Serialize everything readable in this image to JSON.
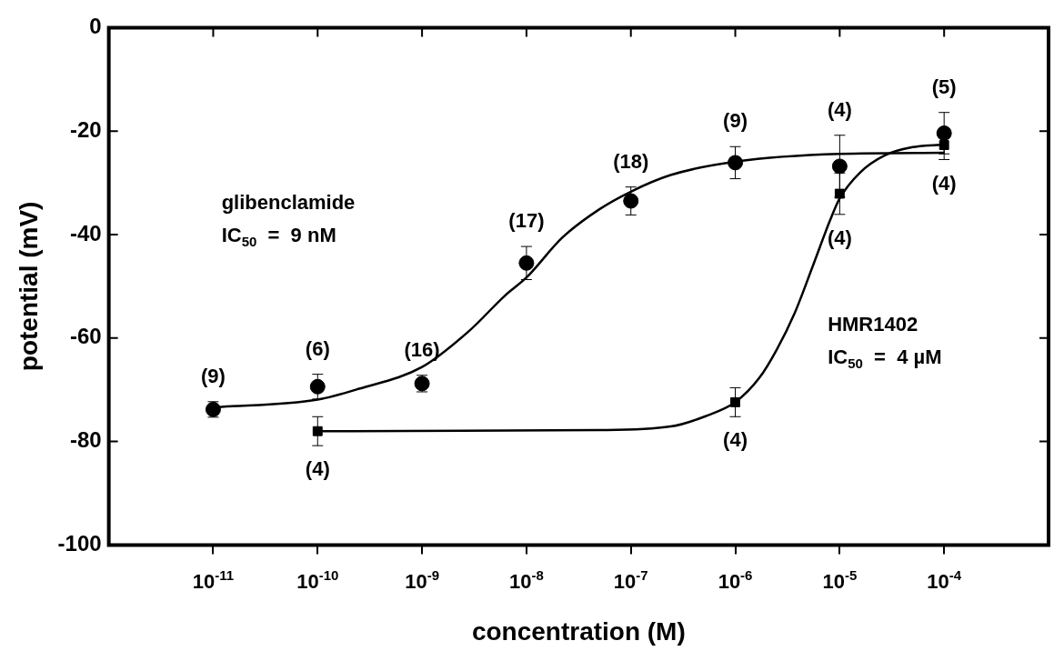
{
  "chart_data": {
    "type": "scatter",
    "xlabel": "concentration (M)",
    "ylabel": "potential (mV)",
    "log": "x",
    "grid": false,
    "legend": false,
    "xlim": [
      1e-12,
      0.001
    ],
    "ylim": [
      -100,
      0
    ],
    "xticks": [
      {
        "value": 1e-11,
        "label": "10$^{-11}$"
      },
      {
        "value": 1e-10,
        "label": "10$^{-10}$"
      },
      {
        "value": 1e-09,
        "label": "10$^{-9}$"
      },
      {
        "value": 1e-08,
        "label": "10$^{-8}$"
      },
      {
        "value": 1e-07,
        "label": "10$^{-7}$"
      },
      {
        "value": 1e-06,
        "label": "10$^{-6}$"
      },
      {
        "value": 1e-05,
        "label": "10$^{-5}$"
      },
      {
        "value": 0.0001,
        "label": "10$^{-4}$"
      }
    ],
    "yticks": [
      -100,
      -80,
      -60,
      -40,
      -20,
      0
    ],
    "series": [
      {
        "marker": "circle",
        "color": "#000000",
        "x": [
          1e-11,
          1e-10,
          1e-09,
          1e-08,
          1e-07,
          1e-06,
          1e-05,
          0.0001
        ],
        "values": [
          -73.8,
          -69.4,
          -68.8,
          -45.5,
          -33.5,
          -26.1,
          -26.8,
          -20.4
        ],
        "errors": [
          1.5,
          2.4,
          1.6,
          3.2,
          2.7,
          3.1,
          6,
          4
        ]
      },
      {
        "marker": "square",
        "color": "#000000",
        "x": [
          1e-10,
          1e-06,
          1e-05,
          0.0001
        ],
        "values": [
          -78,
          -72.4,
          -32.1,
          -22.7
        ],
        "errors": [
          2.8,
          2.8,
          4,
          2.8
        ]
      },
      {
        "type": "line",
        "marker": "none",
        "color": "#000000",
        "x": [
          1e-11,
          1e-10,
          2.5e-10,
          1e-09,
          2.8e-09,
          6.3e-09,
          1e-08,
          2.2e-08,
          5e-08,
          1e-07,
          2.4e-07,
          1e-06,
          1e-05,
          0.0001
        ],
        "values": [
          -73.4,
          -71.9,
          -69.8,
          -65.6,
          -58.7,
          -51.7,
          -48.3,
          -40.6,
          -35.1,
          -31.7,
          -28.5,
          -25.9,
          -24.4,
          -24.2
        ]
      },
      {
        "type": "line",
        "marker": "none",
        "color": "#000000",
        "x": [
          1e-10,
          5e-08,
          2.4e-07,
          5.2e-07,
          1e-06,
          1.7e-06,
          2.5e-06,
          3.7e-06,
          5.5e-06,
          8.1e-06,
          1e-05,
          1.55e-05,
          2.7e-05,
          5e-05,
          0.0001
        ],
        "values": [
          -78,
          -77.8,
          -77.1,
          -75.1,
          -72.4,
          -67.7,
          -62.2,
          -55.2,
          -46.2,
          -37.2,
          -33,
          -28.1,
          -24.7,
          -23.1,
          -22.6
        ]
      }
    ],
    "annotations": [
      {
        "text": "(9)",
        "x": 1e-11,
        "y": -73.8
      },
      {
        "text": "(6)",
        "x": 1e-10,
        "y": -69.4
      },
      {
        "text": "(16)",
        "x": 1e-09,
        "y": -68.8
      },
      {
        "text": "(17)",
        "x": 1e-08,
        "y": -45.5
      },
      {
        "text": "(18)",
        "x": 1e-07,
        "y": -33.5
      },
      {
        "text": "(9)",
        "x": 1e-06,
        "y": -26.1
      },
      {
        "text": "(4)",
        "x": 1e-05,
        "y": -26.8
      },
      {
        "text": "(5)",
        "x": 0.0001,
        "y": -20.4
      },
      {
        "text": "(4)",
        "x": 1e-10,
        "y": -78
      },
      {
        "text": "(4)",
        "x": 1e-06,
        "y": -72.4
      },
      {
        "text": "(4)",
        "x": 1e-05,
        "y": -32.1
      },
      {
        "text": "(4)",
        "x": 0.0001,
        "y": -22.7
      },
      "glibenclamide",
      "IC$_{50}$  =  9 nM",
      "HMR1402",
      "IC$_{50}$  =  4 µM"
    ]
  }
}
